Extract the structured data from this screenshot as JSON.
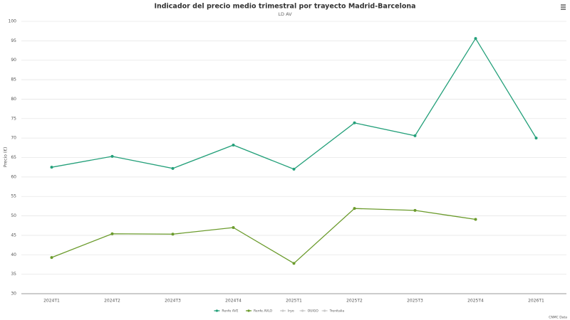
{
  "chart_data": {
    "type": "line",
    "title": "Indicador del precio medio trimestral por trayecto Madrid-Barcelona",
    "subtitle": "LD AV",
    "y_label": "Precio (€)",
    "credits": "CNMC Data",
    "categories": [
      "2024T1",
      "2024T2",
      "2024T3",
      "2024T4",
      "2025T1",
      "2025T2",
      "2025T3",
      "2025T4",
      "2026T1"
    ],
    "series": [
      {
        "name": "Renfe AVE",
        "color": "#24a07a",
        "values": [
          62.5,
          65.3,
          62.2,
          68.2,
          62.0,
          73.9,
          70.6,
          95.6,
          70.0
        ]
      },
      {
        "name": "Renfe AVLO",
        "color": "#6b9b2c",
        "values": [
          39.3,
          45.4,
          45.3,
          47.0,
          37.8,
          51.9,
          51.4,
          49.1,
          null
        ]
      },
      {
        "name": "Iryo",
        "color": "#999999",
        "hidden": true,
        "values": [
          null,
          null,
          null,
          null,
          null,
          null,
          null,
          null,
          null
        ]
      },
      {
        "name": "OUIGO",
        "color": "#999999",
        "hidden": true,
        "values": [
          null,
          null,
          null,
          null,
          null,
          null,
          null,
          null,
          null
        ]
      },
      {
        "name": "Trenitalia",
        "color": "#999999",
        "hidden": true,
        "values": [
          null,
          null,
          null,
          null,
          null,
          null,
          null,
          null,
          null
        ]
      }
    ],
    "ylim": [
      30,
      100
    ],
    "yticks": [
      30,
      35,
      40,
      45,
      50,
      55,
      60,
      65,
      70,
      75,
      80,
      85,
      90,
      95,
      100
    ],
    "grid": true,
    "legend": "bottom"
  }
}
